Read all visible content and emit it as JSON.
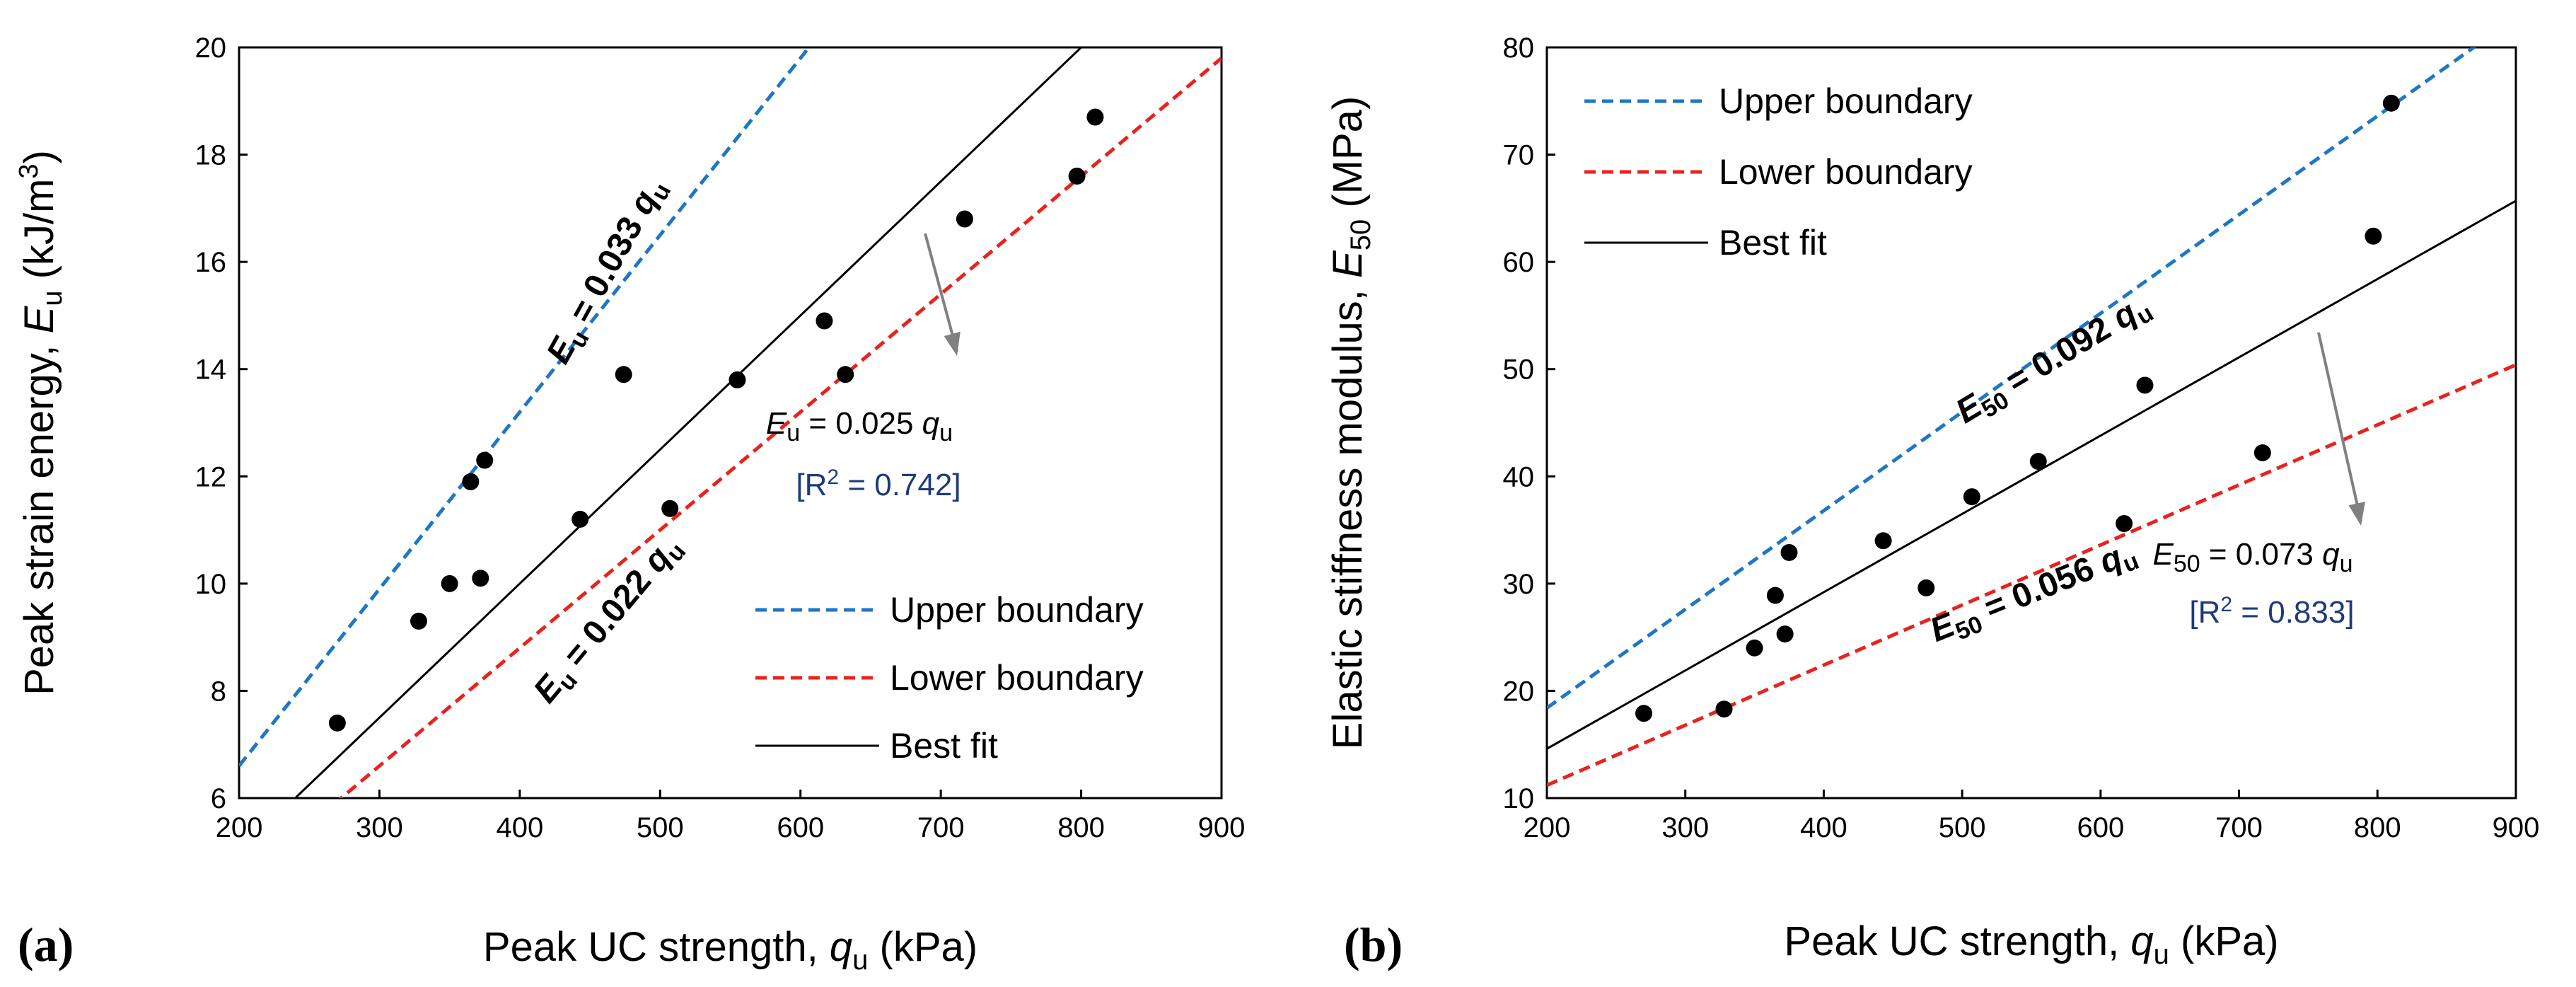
{
  "chart_data": [
    {
      "type": "scatter",
      "panel_label": "(a)",
      "xlabel": {
        "main": "Peak UC strength, ",
        "var": "q",
        "sub": "u",
        "unit": " (kPa)"
      },
      "ylabel": {
        "main": "Peak strain energy, ",
        "var": "E",
        "sub": "u",
        "unit": " (kJ/m",
        "sup": "3",
        "close": ")"
      },
      "xlim": [
        200,
        900
      ],
      "ylim": [
        6,
        20
      ],
      "xticks": [
        200,
        300,
        400,
        500,
        600,
        700,
        800,
        900
      ],
      "yticks": [
        6,
        8,
        10,
        12,
        14,
        16,
        18,
        20
      ],
      "grid": false,
      "legend_position": "bottom-right",
      "series": [
        {
          "name": "Upper boundary",
          "kind": "line",
          "style": "dashed",
          "color": "#1f77c4",
          "slope": 0.033
        },
        {
          "name": "Lower boundary",
          "kind": "line",
          "style": "dashed",
          "color": "#e8231e",
          "slope": 0.022
        },
        {
          "name": "Best fit",
          "kind": "line",
          "style": "solid",
          "color": "#000000",
          "slope": 0.025
        },
        {
          "kind": "points",
          "color": "#000000",
          "x": [
            270,
            328,
            350,
            365,
            372,
            375,
            443,
            474,
            507,
            555,
            617,
            632,
            717,
            797,
            810
          ],
          "y": [
            7.4,
            9.3,
            10.0,
            11.9,
            10.1,
            12.3,
            11.2,
            13.9,
            11.4,
            13.8,
            14.9,
            13.9,
            16.8,
            17.6,
            18.7
          ]
        }
      ],
      "annotations": {
        "upper_eq": {
          "var": "E",
          "sub": "u",
          "rest": " = 0.033 ",
          "q": "q",
          "qsub": "u"
        },
        "lower_eq": {
          "var": "E",
          "sub": "u",
          "rest": " = 0.022 ",
          "q": "q",
          "qsub": "u"
        },
        "fit_eq": {
          "var": "E",
          "sub": "u",
          "rest": " = 0.025 ",
          "q": "q",
          "qsub": "u"
        },
        "r2": {
          "pre": "[R",
          "sup": "2",
          "post": " = 0.742]"
        }
      }
    },
    {
      "type": "scatter",
      "panel_label": "(b)",
      "xlabel": {
        "main": "Peak UC strength, ",
        "var": "q",
        "sub": "u",
        "unit": " (kPa)"
      },
      "ylabel": {
        "main": "Elastic stiffness modulus, ",
        "var": "E",
        "sub": "50",
        "unit": " (MPa)",
        "sup": "",
        "close": ""
      },
      "xlim": [
        200,
        900
      ],
      "ylim": [
        10,
        80
      ],
      "xticks": [
        200,
        300,
        400,
        500,
        600,
        700,
        800,
        900
      ],
      "yticks": [
        10,
        20,
        30,
        40,
        50,
        60,
        70,
        80
      ],
      "grid": false,
      "legend_position": "top-left",
      "series": [
        {
          "name": "Upper boundary",
          "kind": "line",
          "style": "dashed",
          "color": "#1f77c4",
          "slope": 0.092
        },
        {
          "name": "Lower boundary",
          "kind": "line",
          "style": "dashed",
          "color": "#e8231e",
          "slope": 0.056
        },
        {
          "name": "Best fit",
          "kind": "line",
          "style": "solid",
          "color": "#000000",
          "slope": 0.073
        },
        {
          "kind": "points",
          "color": "#000000",
          "x": [
            270,
            328,
            350,
            365,
            372,
            375,
            443,
            474,
            507,
            555,
            617,
            632,
            717,
            797,
            810
          ],
          "y": [
            17.9,
            18.3,
            24.0,
            28.9,
            25.3,
            32.9,
            34.0,
            29.6,
            38.1,
            41.4,
            35.6,
            48.5,
            42.2,
            62.4,
            74.8
          ]
        }
      ],
      "annotations": {
        "upper_eq": {
          "var": "E",
          "sub": "50",
          "rest": " = 0.092 ",
          "q": "q",
          "qsub": "u"
        },
        "lower_eq": {
          "var": "E",
          "sub": "50",
          "rest": " = 0.056 ",
          "q": "q",
          "qsub": "u"
        },
        "fit_eq": {
          "var": "E",
          "sub": "50",
          "rest": " = 0.073 ",
          "q": "q",
          "qsub": "u"
        },
        "r2": {
          "pre": "[R",
          "sup": "2",
          "post": " = 0.833]"
        }
      }
    }
  ]
}
